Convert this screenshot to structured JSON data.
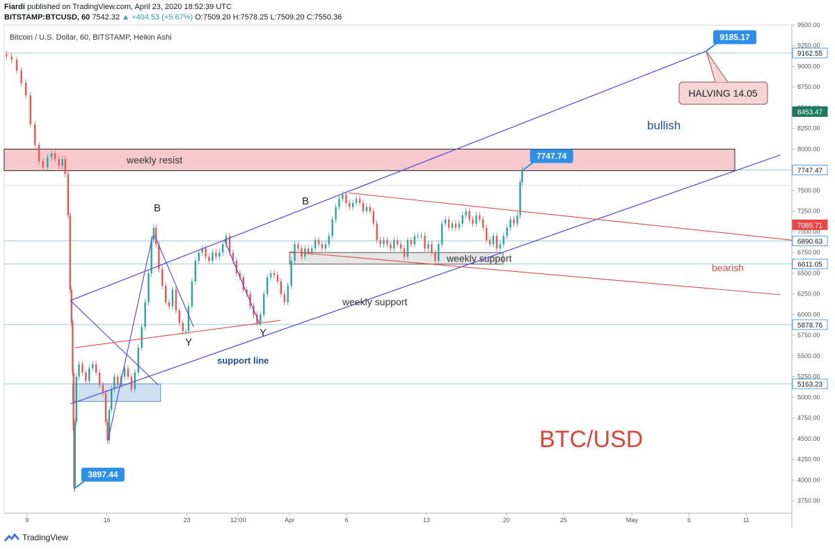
{
  "header": {
    "publisher": "Fiardi",
    "published_text": "published on TradingView.com, April 23, 2020 18:52:39 UTC",
    "symbol": "BITSTAMP:BTCUSD, 60",
    "last": "7542.32",
    "change": "+404.53 (+5.67%)",
    "open": "O:7509.20",
    "high": "H:7578.25",
    "low": "L:7509.20",
    "close": "C:7550.36"
  },
  "chart_data": {
    "type": "candlestick",
    "title": "Bitcoin / U.S. Dollar, 60, BITSTAMP, Heikin Ashi",
    "ylim": [
      3600,
      9500
    ],
    "y_ticks": [
      3750,
      4000,
      4250,
      4500,
      4750,
      5000,
      5250,
      5500,
      5750,
      6000,
      6250,
      6500,
      6750,
      7000,
      7250,
      7500,
      7750,
      8000,
      8250,
      8500,
      8750,
      9000,
      9250,
      9500
    ],
    "y_tick_labels": [
      "3750.00",
      "4000.00",
      "4250.00",
      "4500.00",
      "4750.00",
      "5000.00",
      "5250.00",
      "5500.00",
      "5750.00",
      "6000.00",
      "6250.00",
      "6500.00",
      "6750.00",
      "7000.00",
      "7250.00",
      "7500.00",
      "7750.00",
      "8000.00",
      "8250.00",
      "8500.00",
      "8750.00",
      "9000.00",
      "9250.00",
      "9500.00"
    ],
    "x_ticks": [
      "9",
      "16",
      "23",
      "12:00",
      "Apr",
      "6",
      "13",
      "20",
      "25",
      "May",
      "6",
      "11"
    ],
    "x_tick_days": [
      9,
      16,
      23,
      27.5,
      32,
      37,
      44,
      51,
      56,
      62,
      67,
      72
    ],
    "xlim": [
      7,
      76
    ],
    "series": [
      {
        "name": "price",
        "points": [
          [
            7.0,
            9150
          ],
          [
            7.4,
            9120
          ],
          [
            7.9,
            9080
          ],
          [
            8.3,
            8950
          ],
          [
            8.7,
            8800
          ],
          [
            9.1,
            8650
          ],
          [
            9.5,
            8300
          ],
          [
            9.9,
            8050
          ],
          [
            10.2,
            7850
          ],
          [
            10.6,
            7780
          ],
          [
            11.0,
            7900
          ],
          [
            11.3,
            7950
          ],
          [
            11.6,
            7880
          ],
          [
            12.0,
            7800
          ],
          [
            12.2,
            7880
          ],
          [
            12.5,
            7700
          ],
          [
            12.7,
            7200
          ],
          [
            12.85,
            6300
          ],
          [
            12.95,
            5900
          ],
          [
            13.05,
            5300
          ],
          [
            13.1,
            4600
          ],
          [
            13.15,
            3900
          ],
          [
            13.25,
            4700
          ],
          [
            13.4,
            5250
          ],
          [
            13.7,
            5400
          ],
          [
            14.0,
            5300
          ],
          [
            14.3,
            5200
          ],
          [
            14.6,
            5350
          ],
          [
            14.9,
            5400
          ],
          [
            15.2,
            5300
          ],
          [
            15.5,
            5150
          ],
          [
            15.8,
            5050
          ],
          [
            16.0,
            4700
          ],
          [
            16.1,
            4480
          ],
          [
            16.3,
            4850
          ],
          [
            16.5,
            5100
          ],
          [
            16.8,
            5250
          ],
          [
            17.1,
            5150
          ],
          [
            17.4,
            5250
          ],
          [
            17.7,
            5350
          ],
          [
            18.0,
            5250
          ],
          [
            18.3,
            5100
          ],
          [
            18.6,
            5300
          ],
          [
            18.9,
            5600
          ],
          [
            19.2,
            5850
          ],
          [
            19.5,
            6150
          ],
          [
            19.8,
            6500
          ],
          [
            20.0,
            6900
          ],
          [
            20.2,
            7050
          ],
          [
            20.4,
            6850
          ],
          [
            20.7,
            6550
          ],
          [
            21.0,
            6350
          ],
          [
            21.3,
            6150
          ],
          [
            21.6,
            6100
          ],
          [
            21.9,
            6300
          ],
          [
            22.2,
            6050
          ],
          [
            22.5,
            5900
          ],
          [
            22.8,
            5800
          ],
          [
            23.0,
            5800
          ],
          [
            23.3,
            6100
          ],
          [
            23.6,
            6400
          ],
          [
            23.9,
            6650
          ],
          [
            24.2,
            6750
          ],
          [
            24.5,
            6800
          ],
          [
            24.8,
            6700
          ],
          [
            25.1,
            6650
          ],
          [
            25.4,
            6750
          ],
          [
            25.7,
            6700
          ],
          [
            26.0,
            6750
          ],
          [
            26.3,
            6850
          ],
          [
            26.6,
            6950
          ],
          [
            26.9,
            6750
          ],
          [
            27.2,
            6650
          ],
          [
            27.5,
            6500
          ],
          [
            27.8,
            6450
          ],
          [
            28.1,
            6300
          ],
          [
            28.4,
            6250
          ],
          [
            28.7,
            6100
          ],
          [
            29.0,
            6000
          ],
          [
            29.3,
            5900
          ],
          [
            29.6,
            6000
          ],
          [
            29.9,
            6250
          ],
          [
            30.2,
            6450
          ],
          [
            30.5,
            6500
          ],
          [
            30.8,
            6480
          ],
          [
            31.1,
            6400
          ],
          [
            31.4,
            6250
          ],
          [
            31.7,
            6150
          ],
          [
            32.0,
            6350
          ],
          [
            32.3,
            6650
          ],
          [
            32.6,
            6850
          ],
          [
            32.9,
            6800
          ],
          [
            33.2,
            6700
          ],
          [
            33.5,
            6800
          ],
          [
            33.8,
            6750
          ],
          [
            34.1,
            6800
          ],
          [
            34.4,
            6900
          ],
          [
            34.7,
            6850
          ],
          [
            35.0,
            6800
          ],
          [
            35.3,
            6850
          ],
          [
            35.6,
            6950
          ],
          [
            35.9,
            7150
          ],
          [
            36.2,
            7300
          ],
          [
            36.5,
            7400
          ],
          [
            36.8,
            7450
          ],
          [
            37.1,
            7350
          ],
          [
            37.4,
            7300
          ],
          [
            37.7,
            7350
          ],
          [
            38.0,
            7400
          ],
          [
            38.3,
            7350
          ],
          [
            38.6,
            7250
          ],
          [
            38.9,
            7300
          ],
          [
            39.2,
            7250
          ],
          [
            39.5,
            7100
          ],
          [
            39.8,
            6900
          ],
          [
            40.1,
            6850
          ],
          [
            40.4,
            6900
          ],
          [
            40.7,
            6850
          ],
          [
            41.0,
            6800
          ],
          [
            41.3,
            6900
          ],
          [
            41.6,
            6850
          ],
          [
            41.9,
            6800
          ],
          [
            42.2,
            6700
          ],
          [
            42.5,
            6900
          ],
          [
            42.8,
            6850
          ],
          [
            43.1,
            6950
          ],
          [
            43.4,
            6950
          ],
          [
            43.7,
            6950
          ],
          [
            44.0,
            6800
          ],
          [
            44.3,
            6850
          ],
          [
            44.6,
            6750
          ],
          [
            44.9,
            6650
          ],
          [
            45.2,
            6850
          ],
          [
            45.5,
            7100
          ],
          [
            45.8,
            7150
          ],
          [
            46.1,
            7050
          ],
          [
            46.4,
            7100
          ],
          [
            46.7,
            7050
          ],
          [
            47.0,
            7100
          ],
          [
            47.3,
            7200
          ],
          [
            47.6,
            7250
          ],
          [
            47.9,
            7150
          ],
          [
            48.2,
            7100
          ],
          [
            48.5,
            7200
          ],
          [
            48.8,
            7150
          ],
          [
            49.1,
            7050
          ],
          [
            49.4,
            6900
          ],
          [
            49.7,
            6850
          ],
          [
            50.0,
            6950
          ],
          [
            50.3,
            6800
          ],
          [
            50.6,
            6850
          ],
          [
            50.9,
            6950
          ],
          [
            51.2,
            7050
          ],
          [
            51.5,
            7150
          ],
          [
            51.8,
            7100
          ],
          [
            52.1,
            7200
          ],
          [
            52.3,
            7600
          ],
          [
            52.45,
            7747
          ]
        ]
      }
    ]
  },
  "overlays": {
    "price_labels": [
      {
        "value": 9162.55,
        "text": "9162.55",
        "color": "#ffffff",
        "fill": "#ffffff",
        "border": "#4fa3d9",
        "textColor": "#131722"
      },
      {
        "value": 8453.47,
        "text": "8453.47",
        "fill": "#1a7a5c",
        "textColor": "#ffffff"
      },
      {
        "value": 7747.47,
        "text": "7747.47",
        "fill": "#ffffff",
        "border": "#4fa3d9",
        "textColor": "#131722"
      },
      {
        "value": 7085.71,
        "text": "7085.71",
        "fill": "#e84545",
        "textColor": "#ffffff"
      },
      {
        "value": 6890.63,
        "text": "6890.63",
        "fill": "#ffffff",
        "border": "#4fa3d9",
        "textColor": "#131722"
      },
      {
        "value": 6611.05,
        "text": "6611.05",
        "fill": "#ffffff",
        "border": "#4fa3d9",
        "textColor": "#131722"
      },
      {
        "value": 5878.76,
        "text": "5878.76",
        "fill": "#ffffff",
        "border": "#4fa3d9",
        "textColor": "#131722"
      },
      {
        "value": 5163.23,
        "text": "5163.23",
        "fill": "#ffffff",
        "border": "#4fa3d9",
        "textColor": "#131722"
      }
    ],
    "callouts": [
      {
        "text": "9185.17",
        "price": 9185.17,
        "day": 68.5
      },
      {
        "text": "7747.74",
        "price": 7747.74,
        "day": 52.45
      },
      {
        "text": "3897.44",
        "price": 3897.44,
        "day": 13.15
      }
    ],
    "annotations": {
      "halving": "HALVING 14.05",
      "bullish": "bullish",
      "bearish": "bearish",
      "weekly_resist": "weekly resist",
      "weekly_support_1": "weekly support",
      "weekly_support_2": "weekly support",
      "support_line": "support line",
      "btcusd": "BTC/USD",
      "b1": "B",
      "b2": "B",
      "y1": "Y",
      "y2": "Y"
    },
    "colors": {
      "up": "#26a69a",
      "down": "#ef5350",
      "channel": "#5b4fd6",
      "bearish": "#d94a4a",
      "resist_zone": "#f6c9cc",
      "support_zone": "#cfe0f2",
      "callout": "#2d8fe8"
    }
  },
  "footer": {
    "brand": "TradingView"
  }
}
